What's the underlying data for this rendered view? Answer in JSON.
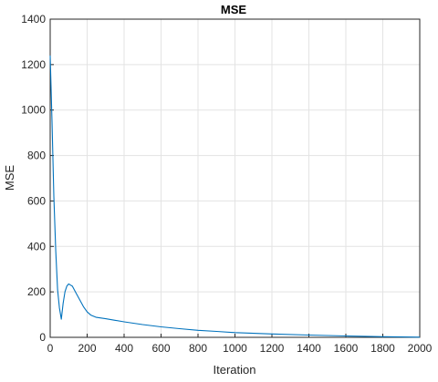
{
  "chart_data": {
    "type": "line",
    "title": "MSE",
    "xlabel": "Iteration",
    "ylabel": "MSE",
    "xlim": [
      0,
      2000
    ],
    "ylim": [
      0,
      1400
    ],
    "xticks": [
      0,
      200,
      400,
      600,
      800,
      1000,
      1200,
      1400,
      1600,
      1800,
      2000
    ],
    "yticks": [
      0,
      200,
      400,
      600,
      800,
      1000,
      1200,
      1400
    ],
    "grid": true,
    "series": [
      {
        "color": "#0072bd",
        "x": [
          0,
          10,
          20,
          30,
          40,
          50,
          60,
          70,
          80,
          90,
          100,
          110,
          120,
          130,
          140,
          160,
          180,
          200,
          220,
          250,
          300,
          350,
          400,
          500,
          600,
          700,
          800,
          900,
          1000,
          1200,
          1400,
          1600,
          1800,
          2000
        ],
        "y": [
          1240,
          950,
          620,
          380,
          210,
          130,
          80,
          150,
          200,
          225,
          235,
          230,
          225,
          210,
          195,
          165,
          135,
          112,
          98,
          88,
          82,
          75,
          68,
          56,
          46,
          38,
          31,
          26,
          21,
          15,
          10,
          6,
          3,
          1
        ]
      }
    ]
  }
}
